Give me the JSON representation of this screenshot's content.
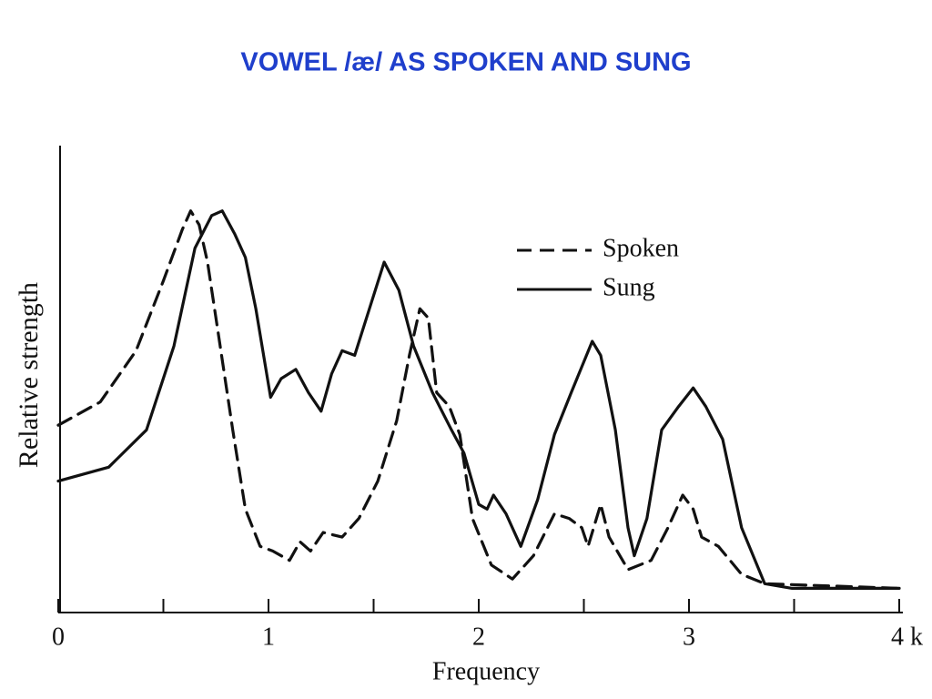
{
  "chart_data": {
    "type": "line",
    "title": "VOWEL /æ/ AS SPOKEN AND SUNG",
    "x_label": "Frequency",
    "y_label": "Relative strength",
    "xlim": [
      0,
      4
    ],
    "ylim": [
      0,
      100
    ],
    "xticks": [
      0,
      1,
      2,
      3,
      {
        "value": 4,
        "label": "4 k"
      }
    ],
    "xticks_minor": [
      0.5,
      1.5,
      2.5,
      3.5
    ],
    "legend": "upper right",
    "series": [
      {
        "name": "Spoken",
        "color": "#111111",
        "dash": true,
        "x": [
          0,
          0.2,
          0.37,
          0.5,
          0.59,
          0.63,
          0.67,
          0.71,
          0.77,
          0.83,
          0.89,
          0.96,
          1.02,
          1.1,
          1.15,
          1.2,
          1.26,
          1.35,
          1.43,
          1.52,
          1.61,
          1.67,
          1.72,
          1.76,
          1.8,
          1.86,
          1.91,
          1.97,
          2.06,
          2.16,
          2.26,
          2.36,
          2.43,
          2.49,
          2.52,
          2.58,
          2.62,
          2.71,
          2.82,
          2.9,
          2.97,
          3.02,
          3.06,
          3.14,
          3.25,
          3.36,
          4
        ],
        "values": [
          40,
          45,
          56,
          71,
          82,
          86,
          83,
          75,
          57,
          39,
          22,
          14,
          13,
          11,
          15,
          13,
          17,
          16,
          20,
          28,
          41,
          55,
          65,
          63,
          47,
          44,
          38,
          20,
          10,
          7,
          12,
          21,
          20,
          18,
          14,
          23,
          16,
          9,
          11,
          18,
          25,
          22,
          16,
          14,
          8,
          6,
          5
        ]
      },
      {
        "name": "Sung",
        "color": "#111111",
        "dash": false,
        "x": [
          0,
          0.24,
          0.42,
          0.55,
          0.65,
          0.73,
          0.78,
          0.84,
          0.89,
          0.94,
          1.01,
          1.06,
          1.13,
          1.19,
          1.25,
          1.3,
          1.35,
          1.41,
          1.48,
          1.55,
          1.62,
          1.69,
          1.78,
          1.87,
          1.93,
          2,
          2.04,
          2.07,
          2.13,
          2.2,
          2.28,
          2.36,
          2.44,
          2.54,
          2.58,
          2.65,
          2.71,
          2.74,
          2.8,
          2.87,
          2.95,
          3.02,
          3.08,
          3.16,
          3.25,
          3.36,
          3.49,
          4
        ],
        "values": [
          28,
          31,
          39,
          57,
          78,
          85,
          86,
          81,
          76,
          65,
          46,
          50,
          52,
          47,
          43,
          51,
          56,
          55,
          65,
          75,
          69,
          57,
          47,
          39,
          34,
          23,
          22,
          25,
          21,
          14,
          24,
          38,
          47,
          58,
          55,
          39,
          18,
          12,
          20,
          39,
          44,
          48,
          44,
          37,
          18,
          6,
          5,
          5
        ]
      }
    ]
  }
}
